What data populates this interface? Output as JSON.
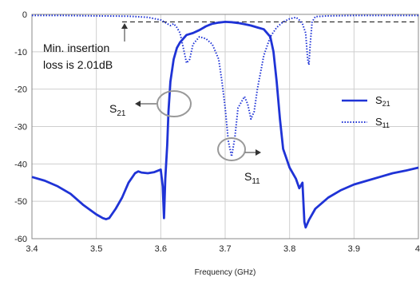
{
  "chart_data": {
    "type": "line",
    "title": "",
    "xlabel": "Frequency (GHz)",
    "ylabel": "",
    "xlim": [
      3.4,
      4.0
    ],
    "ylim": [
      -60,
      0
    ],
    "xticks": [
      "3.4",
      "3.5",
      "3.6",
      "3.7",
      "3.8",
      "3.9",
      "4"
    ],
    "yticks": [
      "0",
      "-10",
      "-20",
      "-30",
      "-40",
      "-50",
      "-60"
    ],
    "grid": true,
    "legend_position": "right",
    "series": [
      {
        "name": "S21",
        "style": "solid",
        "color": "#1f33d6",
        "x": [
          3.4,
          3.42,
          3.44,
          3.46,
          3.48,
          3.5,
          3.51,
          3.515,
          3.52,
          3.53,
          3.54,
          3.55,
          3.56,
          3.565,
          3.57,
          3.58,
          3.59,
          3.6,
          3.603,
          3.605,
          3.607,
          3.61,
          3.612,
          3.615,
          3.62,
          3.625,
          3.63,
          3.64,
          3.65,
          3.66,
          3.67,
          3.68,
          3.69,
          3.7,
          3.71,
          3.72,
          3.73,
          3.74,
          3.75,
          3.76,
          3.77,
          3.775,
          3.78,
          3.785,
          3.79,
          3.8,
          3.81,
          3.815,
          3.82,
          3.823,
          3.825,
          3.83,
          3.84,
          3.86,
          3.88,
          3.9,
          3.92,
          3.94,
          3.96,
          3.98,
          4.0
        ],
        "y": [
          -43.5,
          -44.5,
          -46,
          -48,
          -51,
          -53.5,
          -54.5,
          -54.8,
          -54.5,
          -52,
          -49,
          -45,
          -42.5,
          -42,
          -42.3,
          -42.5,
          -42.2,
          -41.5,
          -46,
          -54.5,
          -44,
          -35,
          -26,
          -18,
          -12,
          -9,
          -7.5,
          -5.5,
          -5,
          -4.2,
          -3.2,
          -2.5,
          -2.2,
          -2.01,
          -2.1,
          -2.3,
          -2.6,
          -3,
          -3.5,
          -4,
          -6,
          -10,
          -18,
          -28,
          -36,
          -41,
          -44,
          -46.5,
          -45,
          -55.5,
          -57,
          -55,
          -52,
          -49,
          -47,
          -45.5,
          -44.5,
          -43.5,
          -42.5,
          -41.8,
          -41
        ]
      },
      {
        "name": "S11",
        "style": "dotted",
        "color": "#1f33d6",
        "x": [
          3.4,
          3.45,
          3.5,
          3.55,
          3.58,
          3.6,
          3.61,
          3.615,
          3.62,
          3.625,
          3.63,
          3.635,
          3.64,
          3.645,
          3.65,
          3.66,
          3.67,
          3.68,
          3.69,
          3.695,
          3.7,
          3.705,
          3.71,
          3.715,
          3.72,
          3.73,
          3.735,
          3.74,
          3.745,
          3.75,
          3.76,
          3.77,
          3.78,
          3.79,
          3.8,
          3.81,
          3.815,
          3.82,
          3.825,
          3.828,
          3.83,
          3.832,
          3.835,
          3.84,
          3.86,
          3.9,
          3.95,
          4.0
        ],
        "y": [
          -0.3,
          -0.3,
          -0.4,
          -0.5,
          -0.8,
          -1.5,
          -2.5,
          -3,
          -2.5,
          -3.5,
          -5,
          -9,
          -13,
          -12,
          -8,
          -6,
          -6.5,
          -8,
          -12,
          -18,
          -25,
          -34,
          -38,
          -33,
          -25,
          -22,
          -24,
          -28,
          -26,
          -20,
          -11,
          -6,
          -3.5,
          -2,
          -1.2,
          -0.8,
          -1.5,
          -2.5,
          -5,
          -12,
          -13.5,
          -8,
          -2,
          -0.6,
          -0.4,
          -0.3,
          -0.3,
          -0.3
        ]
      }
    ],
    "reference_line_y": -2.01
  },
  "annotations": {
    "insertion_loss_line1": "Min. insertion",
    "insertion_loss_line2": "loss is 2.01dB",
    "s21_callout_main": "S",
    "s21_callout_sub": "21",
    "s11_callout_main": "S",
    "s11_callout_sub": "11"
  },
  "legend": {
    "s21_main": "S",
    "s21_sub": "21",
    "s11_main": "S",
    "s11_sub": "11"
  }
}
